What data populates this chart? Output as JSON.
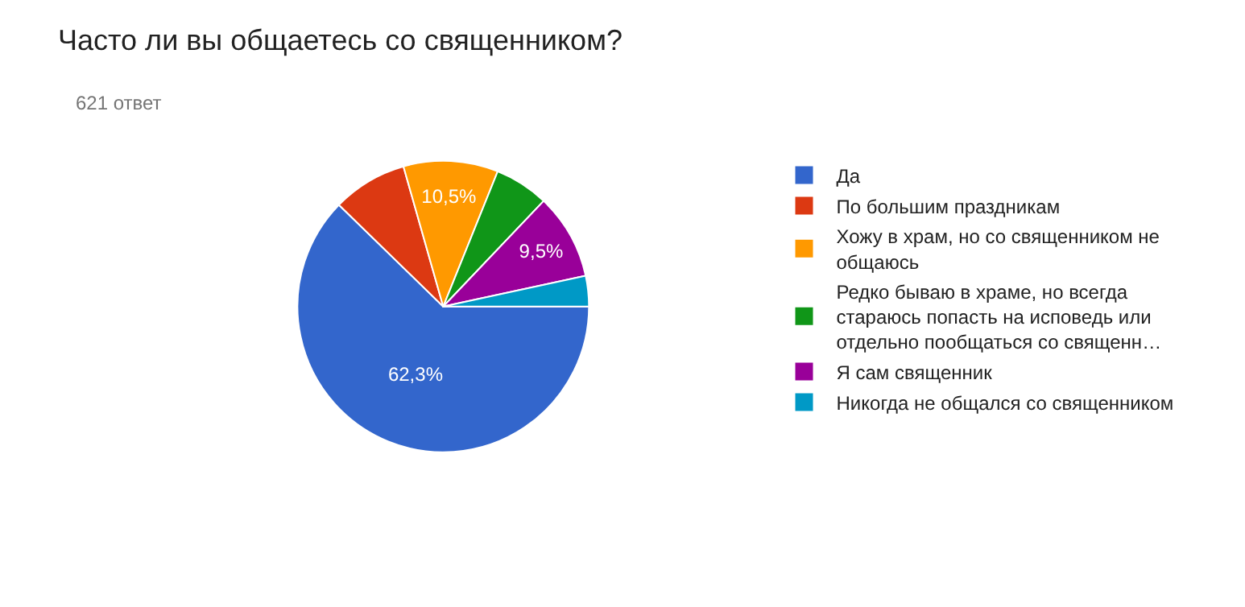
{
  "chart_data": {
    "type": "pie",
    "title": "Часто ли вы общаетесь со священником?",
    "subtitle": "621 ответ",
    "categories": [
      "Да",
      "По большим праздникам",
      "Хожу в храм, но со священником не общаюсь",
      "Редко бываю в храме, но всегда стараюсь попасть на исповедь или отдельно пообщаться со священн…",
      "Я сам священник",
      "Никогда не общался со священником"
    ],
    "values": [
      62.3,
      8.3,
      10.5,
      6.0,
      9.5,
      3.4
    ],
    "colors": [
      "#3366cc",
      "#dc3912",
      "#ff9900",
      "#109618",
      "#990099",
      "#0099c6"
    ],
    "value_labels": [
      "62,3%",
      null,
      "10,5%",
      null,
      "9,5%",
      null
    ],
    "legend": "right"
  }
}
